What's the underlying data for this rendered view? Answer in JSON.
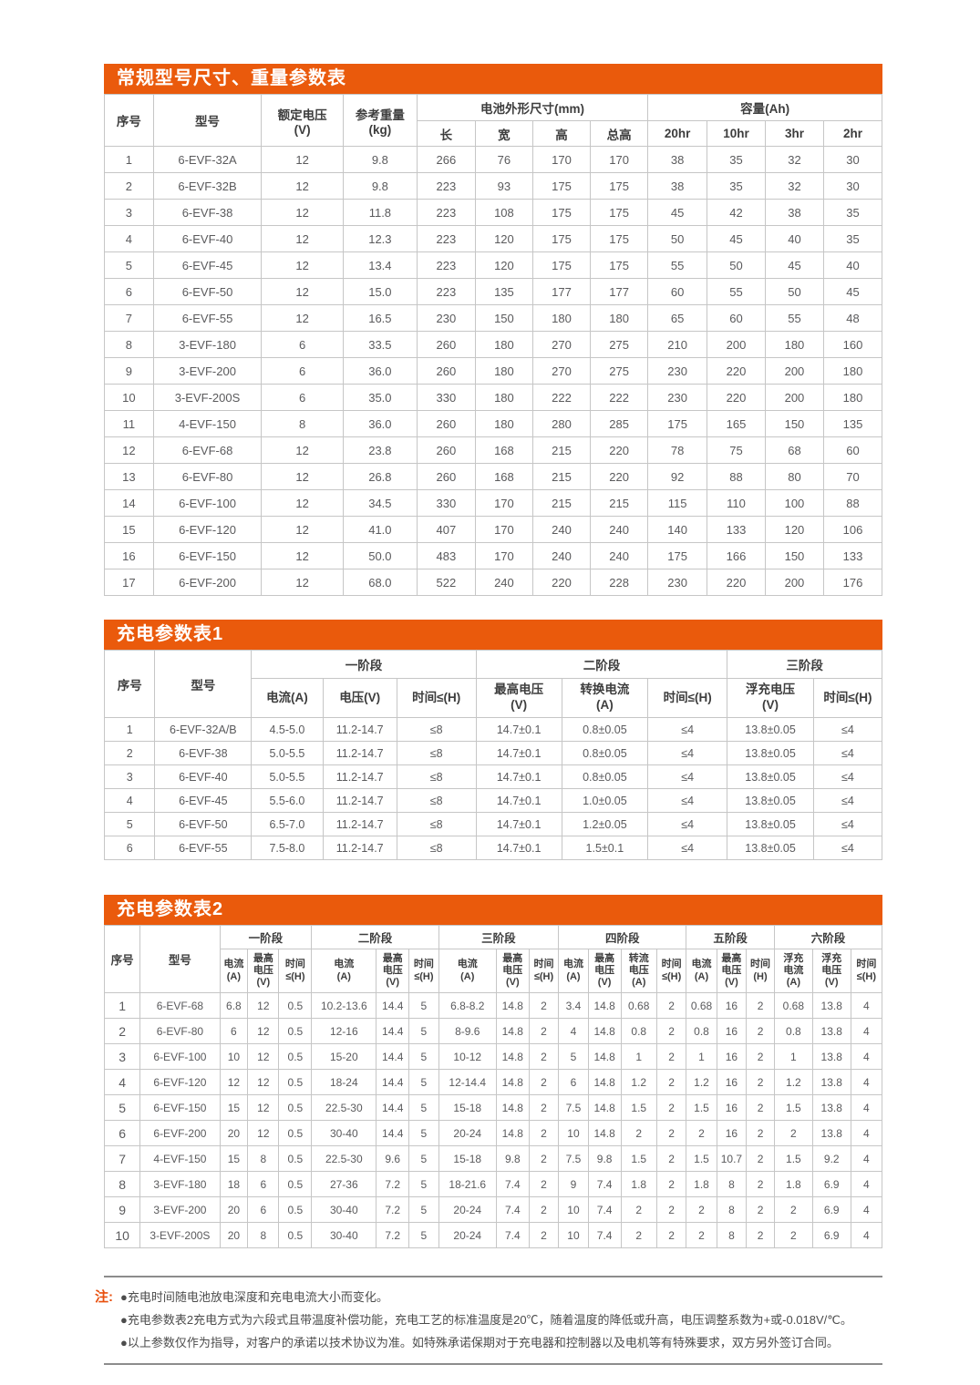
{
  "colors": {
    "accent_orange": "#ea5a0c",
    "note_orange": "#e8500e",
    "border_gray": "#c6c6c6",
    "text_gray": "#5a5a5c"
  },
  "table1": {
    "title": "常规型号尺寸、重量参数表",
    "header": {
      "seq": "序号",
      "model": "型号",
      "voltage": "额定电压\n(V)",
      "weight": "参考重量\n(kg)",
      "group_dim": "电池外形尺寸(mm)",
      "group_cap": "容量(Ah)",
      "dim_cols": [
        "长",
        "宽",
        "高",
        "总高"
      ],
      "cap_cols": [
        "20hr",
        "10hr",
        "3hr",
        "2hr"
      ]
    },
    "rows": [
      [
        "1",
        "6-EVF-32A",
        "12",
        "9.8",
        "266",
        "76",
        "170",
        "170",
        "38",
        "35",
        "32",
        "30"
      ],
      [
        "2",
        "6-EVF-32B",
        "12",
        "9.8",
        "223",
        "93",
        "175",
        "175",
        "38",
        "35",
        "32",
        "30"
      ],
      [
        "3",
        "6-EVF-38",
        "12",
        "11.8",
        "223",
        "108",
        "175",
        "175",
        "45",
        "42",
        "38",
        "35"
      ],
      [
        "4",
        "6-EVF-40",
        "12",
        "12.3",
        "223",
        "120",
        "175",
        "175",
        "50",
        "45",
        "40",
        "35"
      ],
      [
        "5",
        "6-EVF-45",
        "12",
        "13.4",
        "223",
        "120",
        "175",
        "175",
        "55",
        "50",
        "45",
        "40"
      ],
      [
        "6",
        "6-EVF-50",
        "12",
        "15.0",
        "223",
        "135",
        "177",
        "177",
        "60",
        "55",
        "50",
        "45"
      ],
      [
        "7",
        "6-EVF-55",
        "12",
        "16.5",
        "230",
        "150",
        "180",
        "180",
        "65",
        "60",
        "55",
        "48"
      ],
      [
        "8",
        "3-EVF-180",
        "6",
        "33.5",
        "260",
        "180",
        "270",
        "275",
        "210",
        "200",
        "180",
        "160"
      ],
      [
        "9",
        "3-EVF-200",
        "6",
        "36.0",
        "260",
        "180",
        "270",
        "275",
        "230",
        "220",
        "200",
        "180"
      ],
      [
        "10",
        "3-EVF-200S",
        "6",
        "35.0",
        "330",
        "180",
        "222",
        "222",
        "230",
        "220",
        "200",
        "180"
      ],
      [
        "11",
        "4-EVF-150",
        "8",
        "36.0",
        "260",
        "180",
        "280",
        "285",
        "175",
        "165",
        "150",
        "135"
      ],
      [
        "12",
        "6-EVF-68",
        "12",
        "23.8",
        "260",
        "168",
        "215",
        "220",
        "78",
        "75",
        "68",
        "60"
      ],
      [
        "13",
        "6-EVF-80",
        "12",
        "26.8",
        "260",
        "168",
        "215",
        "220",
        "92",
        "88",
        "80",
        "70"
      ],
      [
        "14",
        "6-EVF-100",
        "12",
        "34.5",
        "330",
        "170",
        "215",
        "215",
        "115",
        "110",
        "100",
        "88"
      ],
      [
        "15",
        "6-EVF-120",
        "12",
        "41.0",
        "407",
        "170",
        "240",
        "240",
        "140",
        "133",
        "120",
        "106"
      ],
      [
        "16",
        "6-EVF-150",
        "12",
        "50.0",
        "483",
        "170",
        "240",
        "240",
        "175",
        "166",
        "150",
        "133"
      ],
      [
        "17",
        "6-EVF-200",
        "12",
        "68.0",
        "522",
        "240",
        "220",
        "228",
        "230",
        "220",
        "200",
        "176"
      ]
    ]
  },
  "table2": {
    "title": "充电参数表1",
    "header": {
      "seq": "序号",
      "model": "型号",
      "stage_labels": [
        "一阶段",
        "二阶段",
        "三阶段"
      ],
      "sub_cols": [
        "电流(A)",
        "电压(V)",
        "时间≤(H)",
        "最高电压\n(V)",
        "转换电流\n(A)",
        "时间≤(H)",
        "浮充电压\n(V)",
        "时间≤(H)"
      ]
    },
    "rows": [
      [
        "1",
        "6-EVF-32A/B",
        "4.5-5.0",
        "11.2-14.7",
        "≤8",
        "14.7±0.1",
        "0.8±0.05",
        "≤4",
        "13.8±0.05",
        "≤4"
      ],
      [
        "2",
        "6-EVF-38",
        "5.0-5.5",
        "11.2-14.7",
        "≤8",
        "14.7±0.1",
        "0.8±0.05",
        "≤4",
        "13.8±0.05",
        "≤4"
      ],
      [
        "3",
        "6-EVF-40",
        "5.0-5.5",
        "11.2-14.7",
        "≤8",
        "14.7±0.1",
        "0.8±0.05",
        "≤4",
        "13.8±0.05",
        "≤4"
      ],
      [
        "4",
        "6-EVF-45",
        "5.5-6.0",
        "11.2-14.7",
        "≤8",
        "14.7±0.1",
        "1.0±0.05",
        "≤4",
        "13.8±0.05",
        "≤4"
      ],
      [
        "5",
        "6-EVF-50",
        "6.5-7.0",
        "11.2-14.7",
        "≤8",
        "14.7±0.1",
        "1.2±0.05",
        "≤4",
        "13.8±0.05",
        "≤4"
      ],
      [
        "6",
        "6-EVF-55",
        "7.5-8.0",
        "11.2-14.7",
        "≤8",
        "14.7±0.1",
        "1.5±0.1",
        "≤4",
        "13.8±0.05",
        "≤4"
      ]
    ]
  },
  "table3": {
    "title": "充电参数表2",
    "header": {
      "seq": "序号",
      "model": "型号",
      "stage_labels": [
        "一阶段",
        "二阶段",
        "三阶段",
        "四阶段",
        "五阶段",
        "六阶段"
      ],
      "sub_cols": [
        "电流\n(A)",
        "最高\n电压\n(V)",
        "时间\n≤(H)",
        "电流\n(A)",
        "最高\n电压\n(V)",
        "时间\n≤(H)",
        "电流\n(A)",
        "最高\n电压\n(V)",
        "时间\n≤(H)",
        "电流\n(A)",
        "最高\n电压\n(V)",
        "转流\n电压\n(A)",
        "时间\n≤(H)",
        "电流\n(A)",
        "最高\n电压\n(V)",
        "时间\n(H)",
        "浮充\n电流\n(A)",
        "浮充\n电压\n(V)",
        "时间\n≤(H)"
      ]
    },
    "rows": [
      [
        "1",
        "6-EVF-68",
        "6.8",
        "12",
        "0.5",
        "10.2-13.6",
        "14.4",
        "5",
        "6.8-8.2",
        "14.8",
        "2",
        "3.4",
        "14.8",
        "0.68",
        "2",
        "0.68",
        "16",
        "2",
        "0.68",
        "13.8",
        "4"
      ],
      [
        "2",
        "6-EVF-80",
        "6",
        "12",
        "0.5",
        "12-16",
        "14.4",
        "5",
        "8-9.6",
        "14.8",
        "2",
        "4",
        "14.8",
        "0.8",
        "2",
        "0.8",
        "16",
        "2",
        "0.8",
        "13.8",
        "4"
      ],
      [
        "3",
        "6-EVF-100",
        "10",
        "12",
        "0.5",
        "15-20",
        "14.4",
        "5",
        "10-12",
        "14.8",
        "2",
        "5",
        "14.8",
        "1",
        "2",
        "1",
        "16",
        "2",
        "1",
        "13.8",
        "4"
      ],
      [
        "4",
        "6-EVF-120",
        "12",
        "12",
        "0.5",
        "18-24",
        "14.4",
        "5",
        "12-14.4",
        "14.8",
        "2",
        "6",
        "14.8",
        "1.2",
        "2",
        "1.2",
        "16",
        "2",
        "1.2",
        "13.8",
        "4"
      ],
      [
        "5",
        "6-EVF-150",
        "15",
        "12",
        "0.5",
        "22.5-30",
        "14.4",
        "5",
        "15-18",
        "14.8",
        "2",
        "7.5",
        "14.8",
        "1.5",
        "2",
        "1.5",
        "16",
        "2",
        "1.5",
        "13.8",
        "4"
      ],
      [
        "6",
        "6-EVF-200",
        "20",
        "12",
        "0.5",
        "30-40",
        "14.4",
        "5",
        "20-24",
        "14.8",
        "2",
        "10",
        "14.8",
        "2",
        "2",
        "2",
        "16",
        "2",
        "2",
        "13.8",
        "4"
      ],
      [
        "7",
        "4-EVF-150",
        "15",
        "8",
        "0.5",
        "22.5-30",
        "9.6",
        "5",
        "15-18",
        "9.8",
        "2",
        "7.5",
        "9.8",
        "1.5",
        "2",
        "1.5",
        "10.7",
        "2",
        "1.5",
        "9.2",
        "4"
      ],
      [
        "8",
        "3-EVF-180",
        "18",
        "6",
        "0.5",
        "27-36",
        "7.2",
        "5",
        "18-21.6",
        "7.4",
        "2",
        "9",
        "7.4",
        "1.8",
        "2",
        "1.8",
        "8",
        "2",
        "1.8",
        "6.9",
        "4"
      ],
      [
        "9",
        "3-EVF-200",
        "20",
        "6",
        "0.5",
        "30-40",
        "7.2",
        "5",
        "20-24",
        "7.4",
        "2",
        "10",
        "7.4",
        "2",
        "2",
        "2",
        "8",
        "2",
        "2",
        "6.9",
        "4"
      ],
      [
        "10",
        "3-EVF-200S",
        "20",
        "8",
        "0.5",
        "30-40",
        "7.2",
        "5",
        "20-24",
        "7.4",
        "2",
        "10",
        "7.4",
        "2",
        "2",
        "2",
        "8",
        "2",
        "2",
        "6.9",
        "4"
      ]
    ]
  },
  "notes": {
    "label": "注:",
    "items": [
      "●充电时间随电池放电深度和充电电流大小而变化。",
      "●充电参数表2充电方式为六段式且带温度补偿功能，充电工艺的标准温度是20℃，随着温度的降低或升高，电压调整系数为+或-0.018V/℃。",
      "●以上参数仅作为指导，对客户的承诺以技术协议为准。如特殊承诺保期对于充电器和控制器以及电机等有特殊要求，双方另外签订合同。"
    ]
  }
}
